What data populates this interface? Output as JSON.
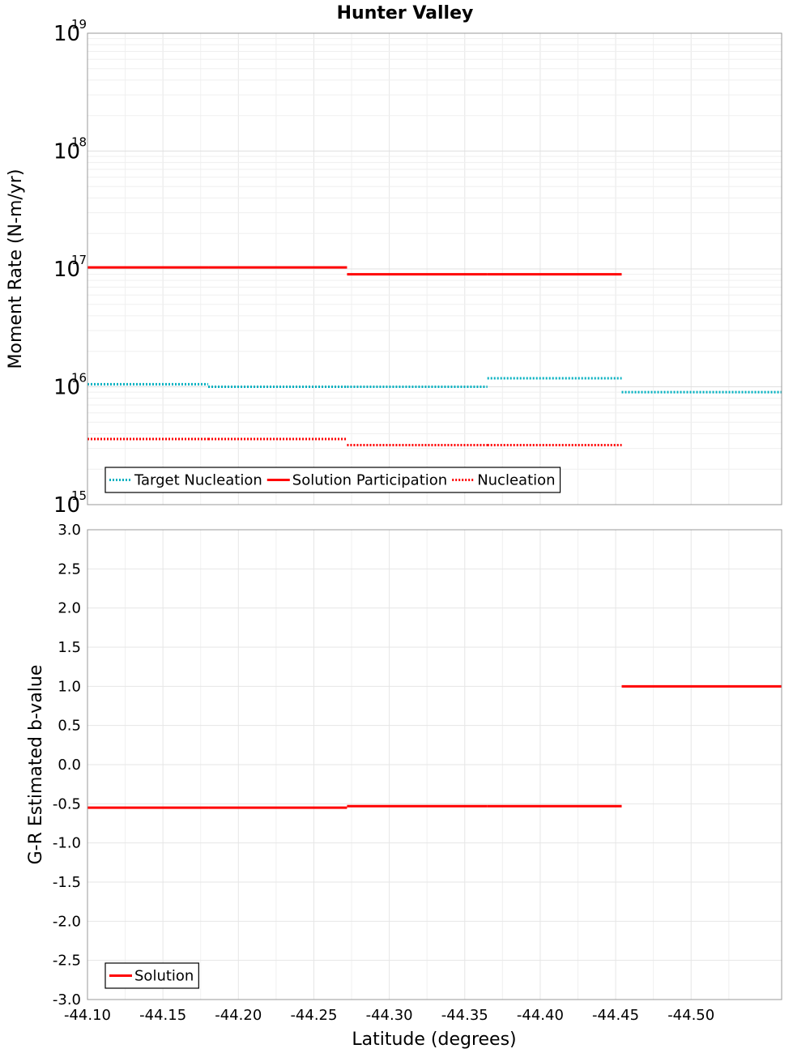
{
  "chart_data": [
    {
      "type": "line",
      "title": "Hunter Valley",
      "xlabel": "Latitude (degrees)",
      "ylabel": "Moment Rate (N-m/yr)",
      "yscale": "log",
      "ylim": [
        1000000000000000.0,
        1e+19
      ],
      "xlim": [
        -44.1,
        -44.56
      ],
      "grid": true,
      "legend_position": "bottom-left",
      "y_ticks": [
        {
          "base": "10",
          "exp": "15",
          "value": 1000000000000000.0
        },
        {
          "base": "10",
          "exp": "16",
          "value": 1e+16
        },
        {
          "base": "10",
          "exp": "17",
          "value": 1e+17
        },
        {
          "base": "10",
          "exp": "18",
          "value": 1e+18
        },
        {
          "base": "10",
          "exp": "19",
          "value": 1e+19
        }
      ],
      "series": [
        {
          "name": "Target Nucleation",
          "color": "#00b0c0",
          "style": "dotted",
          "segments": [
            {
              "x": [
                -44.1,
                -44.18
              ],
              "y": 1.05e+16
            },
            {
              "x": [
                -44.18,
                -44.272
              ],
              "y": 1e+16
            },
            {
              "x": [
                -44.272,
                -44.365
              ],
              "y": 1e+16
            },
            {
              "x": [
                -44.365,
                -44.454
              ],
              "y": 1.18e+16
            },
            {
              "x": [
                -44.454,
                -44.56
              ],
              "y": 9000000000000000.0
            }
          ]
        },
        {
          "name": "Solution Participation",
          "color": "#ff0000",
          "style": "solid",
          "segments": [
            {
              "x": [
                -44.1,
                -44.18
              ],
              "y": 1.03e+17
            },
            {
              "x": [
                -44.18,
                -44.272
              ],
              "y": 1.03e+17
            },
            {
              "x": [
                -44.272,
                -44.365
              ],
              "y": 9e+16
            },
            {
              "x": [
                -44.365,
                -44.454
              ],
              "y": 9e+16
            }
          ]
        },
        {
          "name": "Nucleation",
          "color": "#ff0000",
          "style": "dotted",
          "segments": [
            {
              "x": [
                -44.1,
                -44.18
              ],
              "y": 3600000000000000.0
            },
            {
              "x": [
                -44.18,
                -44.272
              ],
              "y": 3600000000000000.0
            },
            {
              "x": [
                -44.272,
                -44.365
              ],
              "y": 3200000000000000.0
            },
            {
              "x": [
                -44.365,
                -44.454
              ],
              "y": 3200000000000000.0
            }
          ]
        }
      ]
    },
    {
      "type": "line",
      "xlabel": "Latitude (degrees)",
      "ylabel": "G-R Estimated b-value",
      "ylim": [
        -3.0,
        3.0
      ],
      "xlim": [
        -44.1,
        -44.56
      ],
      "grid": true,
      "legend_position": "bottom-left",
      "y_ticks": [
        "3.0",
        "2.5",
        "2.0",
        "1.5",
        "1.0",
        "0.5",
        "0.0",
        "-0.5",
        "-1.0",
        "-1.5",
        "-2.0",
        "-2.5",
        "-3.0"
      ],
      "x_ticks": [
        "-44.10",
        "-44.15",
        "-44.20",
        "-44.25",
        "-44.30",
        "-44.35",
        "-44.40",
        "-44.45",
        "-44.50"
      ],
      "series": [
        {
          "name": "Solution",
          "color": "#ff0000",
          "style": "solid",
          "segments": [
            {
              "x": [
                -44.1,
                -44.18
              ],
              "y": -0.55
            },
            {
              "x": [
                -44.18,
                -44.272
              ],
              "y": -0.55
            },
            {
              "x": [
                -44.272,
                -44.365
              ],
              "y": -0.53
            },
            {
              "x": [
                -44.365,
                -44.454
              ],
              "y": -0.53
            },
            {
              "x": [
                -44.454,
                -44.56
              ],
              "y": 1.0
            }
          ]
        }
      ]
    }
  ]
}
